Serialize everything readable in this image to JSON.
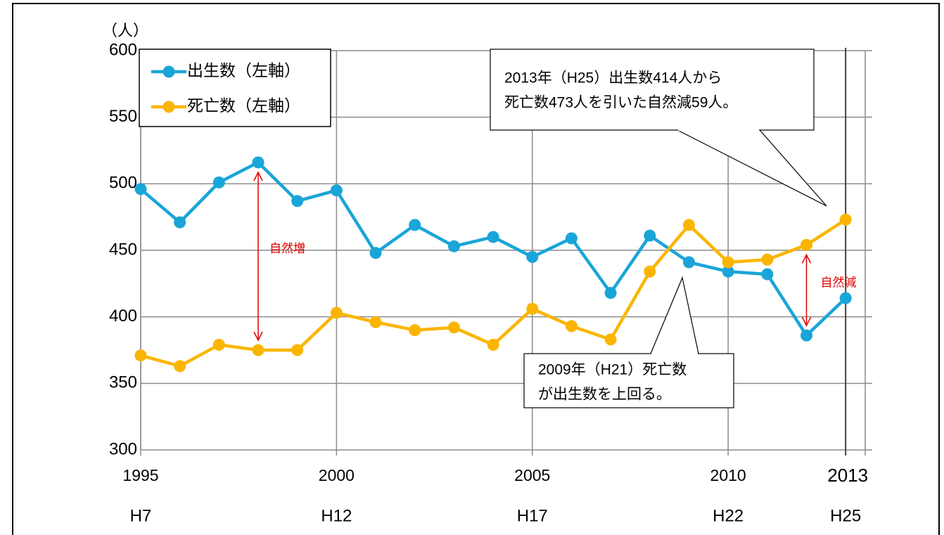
{
  "chart_data": {
    "type": "line",
    "y_axis_label": "（人）",
    "x": [
      1995,
      1996,
      1997,
      1998,
      1999,
      2000,
      2001,
      2002,
      2003,
      2004,
      2005,
      2006,
      2007,
      2008,
      2009,
      2010,
      2011,
      2012,
      2013
    ],
    "xlim": [
      1995,
      2013.5
    ],
    "xticks": [
      1995,
      2000,
      2005,
      2010,
      2013
    ],
    "xtick_era_labels": [
      "H7",
      "H12",
      "H17",
      "H22",
      "H25"
    ],
    "ylim": [
      300,
      600
    ],
    "yticks": [
      300,
      350,
      400,
      450,
      500,
      550,
      600
    ],
    "grid": true,
    "legend": "top-left",
    "series": [
      {
        "name": "出生数（左軸）",
        "color": "#1aa5d8",
        "values": [
          496,
          471,
          501,
          516,
          487,
          495,
          448,
          469,
          453,
          460,
          445,
          459,
          418,
          461,
          441,
          434,
          432,
          386,
          414
        ]
      },
      {
        "name": "死亡数（左軸）",
        "color": "#fbb500",
        "values": [
          371,
          363,
          379,
          375,
          375,
          403,
          396,
          390,
          392,
          379,
          406,
          393,
          383,
          434,
          469,
          441,
          443,
          454,
          473
        ]
      }
    ],
    "callouts": [
      {
        "lines": [
          "2013年（H25）出生数414人から",
          "死亡数473人を引いた自然減59人。"
        ]
      },
      {
        "lines": [
          "2009年（H21）死亡数",
          "が出生数を上回る。"
        ]
      }
    ],
    "gap_labels": [
      "自然増",
      "自然減"
    ]
  }
}
